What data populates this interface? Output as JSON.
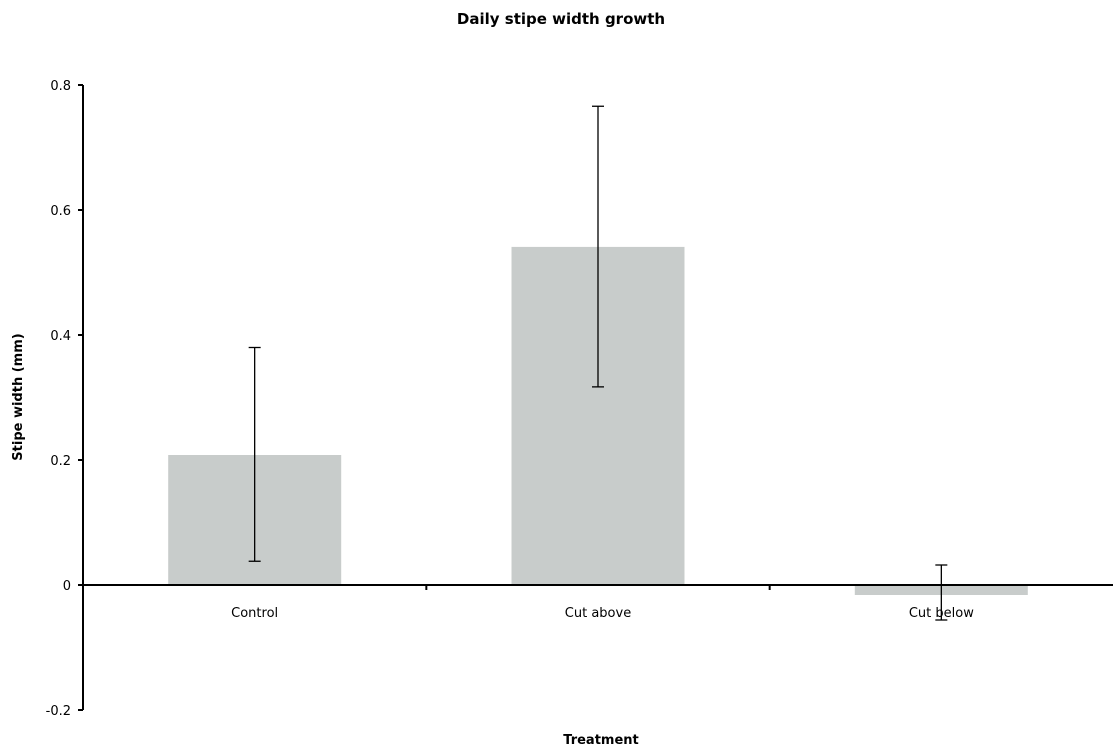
{
  "chart_data": {
    "type": "bar",
    "title": "Daily stipe width growth",
    "xlabel": "Treatment",
    "ylabel": "Stipe width (mm)",
    "categories": [
      "Control",
      "Cut above",
      "Cut below"
    ],
    "values": [
      0.208,
      0.541,
      -0.016
    ],
    "error_low": [
      0.038,
      0.317,
      -0.056
    ],
    "error_high": [
      0.38,
      0.766,
      0.032
    ],
    "ylim": [
      -0.2,
      0.8
    ],
    "yticks": [
      -0.2,
      0,
      0.2,
      0.4,
      0.6,
      0.8
    ],
    "ytick_labels": [
      "-0.2",
      "0",
      "0.2",
      "0.4",
      "0.6",
      "0.8"
    ],
    "bar_color": "#c8cccb",
    "grid": false,
    "legend": "none"
  }
}
